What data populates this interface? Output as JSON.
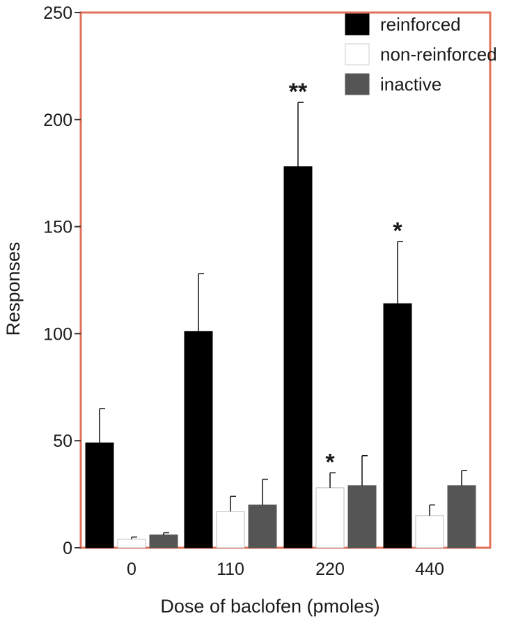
{
  "chart_data": {
    "type": "bar",
    "title": "",
    "xlabel": "Dose of baclofen (pmoles)",
    "ylabel": "Responses",
    "ylim": [
      0,
      250
    ],
    "yticks": [
      0,
      50,
      100,
      150,
      200,
      250
    ],
    "categories": [
      "0",
      "110",
      "220",
      "440"
    ],
    "legend_position": "top-right",
    "grid": false,
    "series": [
      {
        "name": "reinforced",
        "color": "#000000",
        "values": [
          49,
          101,
          178,
          114
        ],
        "errors": [
          16,
          27,
          30,
          29
        ]
      },
      {
        "name": "non-reinforced",
        "color": "#ffffff",
        "values": [
          4,
          17,
          28,
          15
        ],
        "errors": [
          1,
          7,
          7,
          5
        ]
      },
      {
        "name": "inactive",
        "color": "#555555",
        "values": [
          6,
          20,
          29,
          29
        ],
        "errors": [
          1,
          12,
          14,
          7
        ]
      }
    ],
    "annotations": [
      {
        "text": "**",
        "category": 2,
        "series": 0
      },
      {
        "text": "*",
        "category": 2,
        "series": 1
      },
      {
        "text": "*",
        "category": 3,
        "series": 0
      }
    ],
    "frame_color": "#e07058"
  }
}
